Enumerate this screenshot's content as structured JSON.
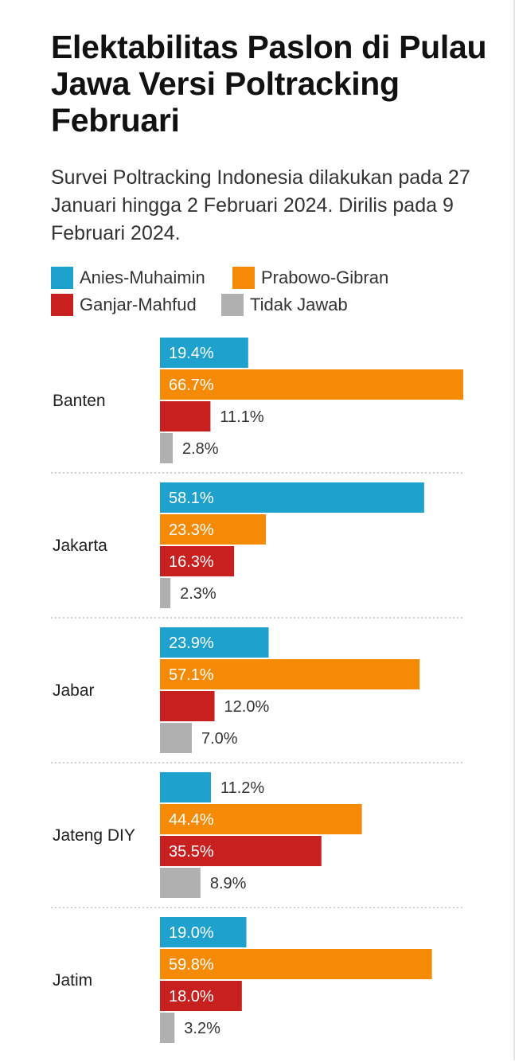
{
  "header": {
    "title": "Elektabilitas Paslon di Pulau Jawa Versi Poltracking Februari",
    "subtitle": "Survei Poltracking Indonesia dilakukan pada 27 Januari hingga 2 Februari 2024. Dirilis pada 9 Februari 2024."
  },
  "legend": {
    "items": [
      {
        "label": "Anies-Muhaimin",
        "color": "#1ea1cc"
      },
      {
        "label": "Prabowo-Gibran",
        "color": "#f58a07"
      },
      {
        "label": "Ganjar-Mahfud",
        "color": "#c8201f"
      },
      {
        "label": "Tidak Jawab",
        "color": "#b0b0b0"
      }
    ]
  },
  "chart_data": {
    "type": "bar",
    "orientation": "horizontal",
    "categories": [
      "Banten",
      "Jakarta",
      "Jabar",
      "Jateng DIY",
      "Jatim"
    ],
    "series": [
      {
        "name": "Anies-Muhaimin",
        "color": "#1ea1cc",
        "values": [
          19.4,
          58.1,
          23.9,
          11.2,
          19.0
        ],
        "labels": [
          "19.4%",
          "58.1%",
          "23.9%",
          "11.2%",
          "19.0%"
        ]
      },
      {
        "name": "Prabowo-Gibran",
        "color": "#f58a07",
        "values": [
          66.7,
          23.3,
          57.1,
          44.4,
          59.8
        ],
        "labels": [
          "66.7%",
          "23.3%",
          "57.1%",
          "44.4%",
          "59.8%"
        ]
      },
      {
        "name": "Ganjar-Mahfud",
        "color": "#c8201f",
        "values": [
          11.1,
          16.3,
          12.0,
          35.5,
          18.0
        ],
        "labels": [
          "11.1%",
          "16.3%",
          "12.0%",
          "35.5%",
          "18.0%"
        ]
      },
      {
        "name": "Tidak Jawab",
        "color": "#b0b0b0",
        "values": [
          2.8,
          2.3,
          7.0,
          8.9,
          3.2
        ],
        "labels": [
          "2.8%",
          "2.3%",
          "7.0%",
          "8.9%",
          "3.2%"
        ]
      }
    ],
    "xlim": [
      0,
      66.7
    ],
    "grid": false,
    "legend_position": "top"
  }
}
